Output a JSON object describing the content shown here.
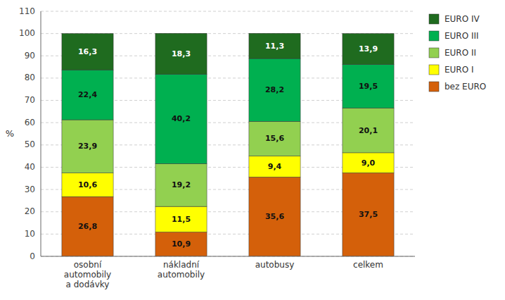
{
  "chart_data": {
    "type": "bar",
    "stacked": true,
    "data_labels": true,
    "grid": true,
    "legend": "right",
    "ylabel": "%",
    "categories": [
      "osobní\nautomobily\na dodávky",
      "nákladní\nautomobily",
      "autobusy",
      "celkem"
    ],
    "ylim": [
      0,
      110
    ],
    "yticks": [
      0,
      10,
      20,
      30,
      40,
      50,
      60,
      70,
      80,
      90,
      100,
      110
    ],
    "series": [
      {
        "name": "bez EURO",
        "color": "#D4600A",
        "values": [
          26.8,
          10.9,
          35.6,
          37.5
        ],
        "value_labels": [
          "26,8",
          "10,9",
          "35,6",
          "37,5"
        ]
      },
      {
        "name": "EURO I",
        "color": "#FFFF00",
        "values": [
          10.6,
          11.5,
          9.4,
          9.0
        ],
        "value_labels": [
          "10,6",
          "11,5",
          "9,4",
          "9,0"
        ]
      },
      {
        "name": "EURO II",
        "color": "#92D050",
        "values": [
          23.9,
          19.2,
          15.6,
          20.1
        ],
        "value_labels": [
          "23,9",
          "19,2",
          "15,6",
          "20,1"
        ]
      },
      {
        "name": "EURO III",
        "color": "#00B050",
        "values": [
          22.4,
          40.2,
          28.2,
          19.5
        ],
        "value_labels": [
          "22,4",
          "40,2",
          "28,2",
          "19,5"
        ]
      },
      {
        "name": "EURO IV",
        "color": "#1F6B1F",
        "values": [
          16.3,
          18.3,
          11.3,
          13.9
        ],
        "value_labels": [
          "16,3",
          "18,3",
          "11,3",
          "13,9"
        ]
      }
    ]
  }
}
